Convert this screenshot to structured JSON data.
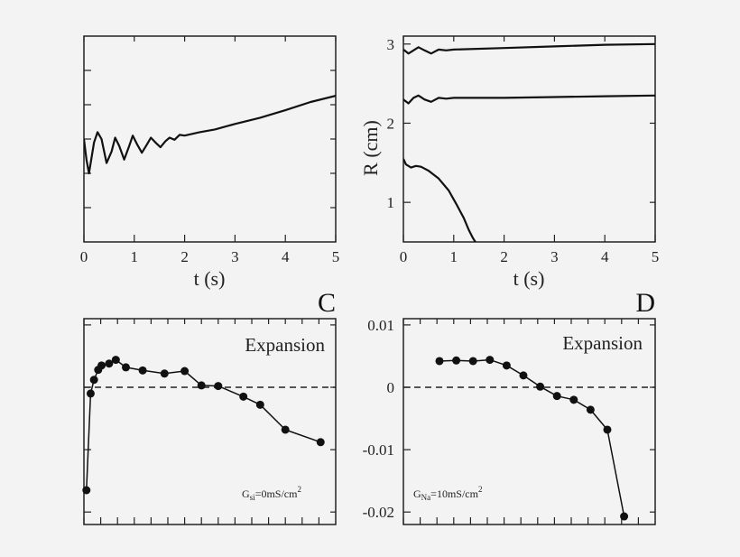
{
  "chart_data": [
    {
      "type": "line",
      "panel": "top-left",
      "title": "",
      "xlabel": "t (s)",
      "ylabel": "",
      "xlim": [
        0,
        5
      ],
      "ylim": [
        0,
        3
      ],
      "xticks": [
        0,
        1,
        2,
        3,
        4,
        5
      ],
      "xtick_labels": [
        "0",
        "1",
        "2",
        "3",
        "4",
        "5"
      ],
      "yticks": [
        0.5,
        1,
        1.5,
        2,
        2.5
      ],
      "series": [
        {
          "name": "trace",
          "x": [
            0,
            0.05,
            0.1,
            0.2,
            0.27,
            0.35,
            0.45,
            0.55,
            0.62,
            0.7,
            0.8,
            0.9,
            0.97,
            1.05,
            1.15,
            1.25,
            1.33,
            1.42,
            1.52,
            1.62,
            1.7,
            1.8,
            1.9,
            2.0,
            2.3,
            2.6,
            3.0,
            3.5,
            4.0,
            4.5,
            5.0
          ],
          "y": [
            1.5,
            1.2,
            1.0,
            1.45,
            1.6,
            1.5,
            1.15,
            1.32,
            1.52,
            1.4,
            1.2,
            1.4,
            1.55,
            1.43,
            1.3,
            1.42,
            1.52,
            1.45,
            1.38,
            1.47,
            1.52,
            1.49,
            1.56,
            1.55,
            1.6,
            1.64,
            1.72,
            1.81,
            1.92,
            2.04,
            2.13
          ]
        }
      ]
    },
    {
      "type": "line",
      "panel": "top-right",
      "title": "",
      "xlabel": "t (s)",
      "ylabel": "R (cm)",
      "xlim": [
        0,
        5
      ],
      "ylim": [
        0.5,
        3.1
      ],
      "xticks": [
        0,
        1,
        2,
        3,
        4,
        5
      ],
      "xtick_labels": [
        "0",
        "1",
        "2",
        "3",
        "4",
        "5"
      ],
      "yticks": [
        1,
        2,
        3
      ],
      "ytick_labels": [
        "1",
        "2",
        "3"
      ],
      "series": [
        {
          "name": "upper",
          "x": [
            0,
            0.1,
            0.2,
            0.3,
            0.42,
            0.55,
            0.7,
            0.85,
            1.0,
            2.0,
            3.0,
            4.0,
            5.0
          ],
          "y": [
            2.93,
            2.88,
            2.92,
            2.96,
            2.92,
            2.88,
            2.93,
            2.92,
            2.93,
            2.95,
            2.97,
            2.99,
            3.0
          ]
        },
        {
          "name": "middle",
          "x": [
            0,
            0.1,
            0.2,
            0.3,
            0.42,
            0.55,
            0.7,
            0.85,
            1.0,
            2.0,
            3.0,
            4.0,
            5.0
          ],
          "y": [
            2.3,
            2.25,
            2.32,
            2.35,
            2.3,
            2.27,
            2.32,
            2.31,
            2.32,
            2.32,
            2.33,
            2.34,
            2.35
          ]
        },
        {
          "name": "lower",
          "x": [
            0,
            0.05,
            0.15,
            0.25,
            0.35,
            0.5,
            0.7,
            0.9,
            1.05,
            1.2,
            1.3,
            1.38,
            1.45
          ],
          "y": [
            1.55,
            1.48,
            1.44,
            1.46,
            1.45,
            1.4,
            1.3,
            1.15,
            0.98,
            0.8,
            0.65,
            0.55,
            0.48
          ]
        }
      ]
    },
    {
      "type": "line",
      "panel": "C",
      "panel_letter": "C",
      "title": "",
      "xlabel": "",
      "ylabel": "",
      "annotation": "Expansion",
      "legend_main": "G",
      "legend_sub": "si",
      "legend_rest": "=0mS/cm",
      "legend_sup": "2",
      "xlim": [
        0,
        30
      ],
      "ylim": [
        -0.022,
        0.011
      ],
      "reference_line_y": 0,
      "yticks": [
        0.01,
        0.0,
        -0.01,
        -0.02
      ],
      "xticks": [
        0,
        2,
        4,
        6,
        8,
        10,
        12,
        14,
        16,
        18,
        20,
        22,
        24,
        26,
        28
      ],
      "series": [
        {
          "name": "C",
          "x": [
            0.3,
            0.8,
            1.2,
            1.7,
            2.1,
            3.0,
            3.8,
            5.0,
            7.0,
            9.6,
            12.0,
            14.0,
            16.0,
            19.0,
            21.0,
            24.0,
            28.2
          ],
          "y": [
            -0.0165,
            -0.001,
            0.0012,
            0.0028,
            0.0035,
            0.0038,
            0.0044,
            0.0032,
            0.0027,
            0.0022,
            0.0026,
            0.0003,
            0.0002,
            -0.0015,
            -0.0028,
            -0.0068,
            -0.0088
          ]
        }
      ]
    },
    {
      "type": "line",
      "panel": "D",
      "panel_letter": "D",
      "title": "",
      "xlabel": "",
      "ylabel": "",
      "annotation": "Expansion",
      "legend_main": "G",
      "legend_sub": "Na",
      "legend_rest": "=10mS/cm",
      "legend_sup": "2",
      "xlim": [
        0,
        30
      ],
      "ylim": [
        -0.022,
        0.011
      ],
      "reference_line_y": 0,
      "yticks": [
        0.01,
        0.0,
        -0.01,
        -0.02
      ],
      "ytick_labels": [
        "0.01",
        "0",
        "-0.01",
        "-0.02"
      ],
      "xticks": [
        0,
        2,
        4,
        6,
        8,
        10,
        12,
        14,
        16,
        18,
        20,
        22,
        24,
        26,
        28
      ],
      "series": [
        {
          "name": "D",
          "x": [
            4.3,
            6.3,
            8.3,
            10.3,
            12.3,
            14.3,
            16.3,
            18.3,
            20.3,
            22.3,
            24.3,
            26.3
          ],
          "y": [
            0.0042,
            0.0043,
            0.0042,
            0.0044,
            0.0035,
            0.0019,
            0.0001,
            -0.0014,
            -0.002,
            -0.0036,
            -0.0068,
            -0.0207
          ]
        }
      ]
    }
  ]
}
